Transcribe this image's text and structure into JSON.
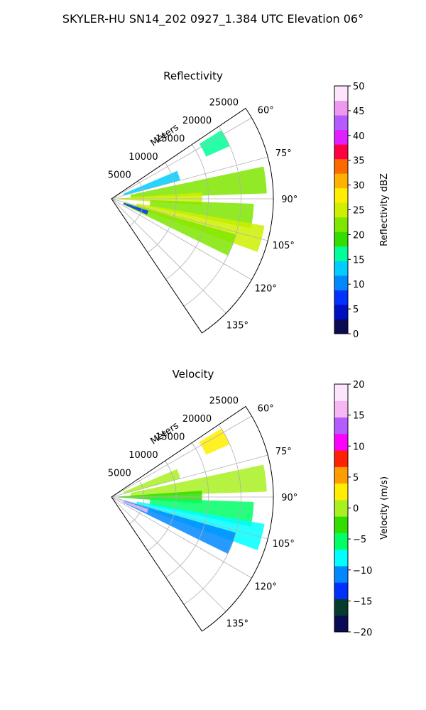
{
  "figure": {
    "title": "SKYLER-HU  SN14_202  0927_1.384 UTC Elevation 06°"
  },
  "chart_data": [
    {
      "type": "heatmap",
      "title": "Reflectivity",
      "projection": "polar-sector",
      "radial_axis_label": "Meters",
      "r_ticks": [
        5000,
        10000,
        15000,
        20000,
        25000
      ],
      "r_tick_labels": [
        "5000",
        "10000",
        "15000",
        "20000",
        "25000"
      ],
      "r_max": 25000,
      "theta_range_deg": [
        56,
        146
      ],
      "theta_ticks": [
        60,
        75,
        90,
        105,
        120,
        135
      ],
      "theta_tick_labels": [
        "60°",
        "75°",
        "90°",
        "105°",
        "120°",
        "135°"
      ],
      "grid": true,
      "colorbar": {
        "label": "Reflectivity dBZ",
        "range": [
          0,
          50
        ],
        "ticks": [
          0,
          5,
          10,
          15,
          20,
          25,
          30,
          35,
          40,
          45,
          50
        ],
        "tick_labels": [
          "0",
          "5",
          "10",
          "15",
          "20",
          "25",
          "30",
          "35",
          "40",
          "45",
          "50"
        ]
      },
      "echo_regions": [
        {
          "az": [
            58,
            66
          ],
          "r": [
            16000,
            20000
          ],
          "value": 17
        },
        {
          "az": [
            67,
            75
          ],
          "r": [
            2000,
            11000
          ],
          "value": 12
        },
        {
          "az": [
            78,
            88
          ],
          "r": [
            3000,
            24000
          ],
          "value": 21
        },
        {
          "az": [
            86,
            94
          ],
          "r": [
            1000,
            14000
          ],
          "value": 24
        },
        {
          "az": [
            92,
            102
          ],
          "r": [
            6000,
            22000
          ],
          "value": 23
        },
        {
          "az": [
            100,
            110
          ],
          "r": [
            4000,
            24000
          ],
          "value": 25
        },
        {
          "az": [
            106,
            116
          ],
          "r": [
            2000,
            20000
          ],
          "value": 22
        },
        {
          "az": [
            108,
            114
          ],
          "r": [
            2000,
            6000
          ],
          "value": 5
        }
      ]
    },
    {
      "type": "heatmap",
      "title": "Velocity",
      "projection": "polar-sector",
      "radial_axis_label": "Meters",
      "r_ticks": [
        5000,
        10000,
        15000,
        20000,
        25000
      ],
      "r_tick_labels": [
        "5000",
        "10000",
        "15000",
        "20000",
        "25000"
      ],
      "r_max": 25000,
      "theta_range_deg": [
        56,
        146
      ],
      "theta_ticks": [
        60,
        75,
        90,
        105,
        120,
        135
      ],
      "theta_tick_labels": [
        "60°",
        "75°",
        "90°",
        "105°",
        "120°",
        "135°"
      ],
      "grid": true,
      "colorbar": {
        "label": "Velocity (m/s)",
        "range": [
          -20,
          20
        ],
        "ticks": [
          -20,
          -15,
          -10,
          -5,
          0,
          5,
          10,
          15,
          20
        ],
        "tick_labels": [
          "−20",
          "−15",
          "−10",
          "−5",
          "0",
          "5",
          "10",
          "15",
          "20"
        ]
      },
      "echo_regions": [
        {
          "az": [
            58,
            66
          ],
          "r": [
            16000,
            20000
          ],
          "value": 2
        },
        {
          "az": [
            67,
            75
          ],
          "r": [
            2000,
            11000
          ],
          "value": 1
        },
        {
          "az": [
            78,
            88
          ],
          "r": [
            3000,
            24000
          ],
          "value": 0
        },
        {
          "az": [
            86,
            94
          ],
          "r": [
            1000,
            14000
          ],
          "value": -3
        },
        {
          "az": [
            92,
            102
          ],
          "r": [
            6000,
            22000
          ],
          "value": -6
        },
        {
          "az": [
            100,
            110
          ],
          "r": [
            4000,
            24000
          ],
          "value": -10
        },
        {
          "az": [
            106,
            116
          ],
          "r": [
            2000,
            20000
          ],
          "value": -11
        },
        {
          "az": [
            108,
            114
          ],
          "r": [
            1000,
            6000
          ],
          "value": 16
        }
      ]
    }
  ]
}
